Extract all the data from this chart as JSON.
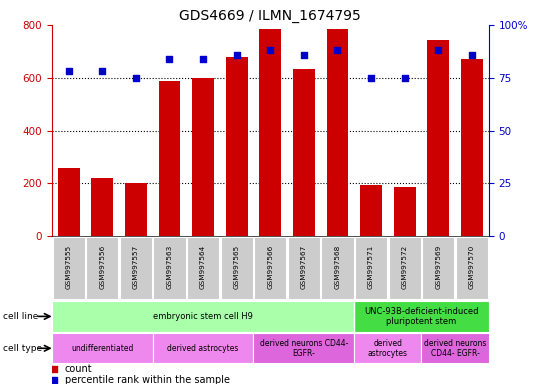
{
  "title": "GDS4669 / ILMN_1674795",
  "samples": [
    "GSM997555",
    "GSM997556",
    "GSM997557",
    "GSM997563",
    "GSM997564",
    "GSM997565",
    "GSM997566",
    "GSM997567",
    "GSM997568",
    "GSM997571",
    "GSM997572",
    "GSM997569",
    "GSM997570"
  ],
  "counts": [
    258,
    222,
    200,
    588,
    600,
    680,
    785,
    635,
    785,
    195,
    188,
    742,
    672
  ],
  "percentiles": [
    78,
    78,
    75,
    84,
    84,
    86,
    88,
    86,
    88,
    75,
    75,
    88,
    86
  ],
  "ylim_left": [
    0,
    800
  ],
  "ylim_right": [
    0,
    100
  ],
  "yticks_left": [
    0,
    200,
    400,
    600,
    800
  ],
  "yticks_right": [
    0,
    25,
    50,
    75,
    100
  ],
  "ytick_right_labels": [
    "0",
    "25",
    "50",
    "75",
    "100%"
  ],
  "bar_color": "#cc0000",
  "dot_color": "#0000cc",
  "cell_line_groups": [
    {
      "label": "embryonic stem cell H9",
      "start": 0,
      "end": 9,
      "color": "#aaffaa"
    },
    {
      "label": "UNC-93B-deficient-induced\npluripotent stem",
      "start": 9,
      "end": 13,
      "color": "#44dd44"
    }
  ],
  "cell_type_groups": [
    {
      "label": "undifferentiated",
      "start": 0,
      "end": 3,
      "color": "#ee88ee"
    },
    {
      "label": "derived astrocytes",
      "start": 3,
      "end": 6,
      "color": "#ee88ee"
    },
    {
      "label": "derived neurons CD44-\nEGFR-",
      "start": 6,
      "end": 9,
      "color": "#dd66dd"
    },
    {
      "label": "derived\nastrocytes",
      "start": 9,
      "end": 11,
      "color": "#ee88ee"
    },
    {
      "label": "derived neurons\nCD44- EGFR-",
      "start": 11,
      "end": 13,
      "color": "#dd66dd"
    }
  ],
  "background_color": "#ffffff"
}
